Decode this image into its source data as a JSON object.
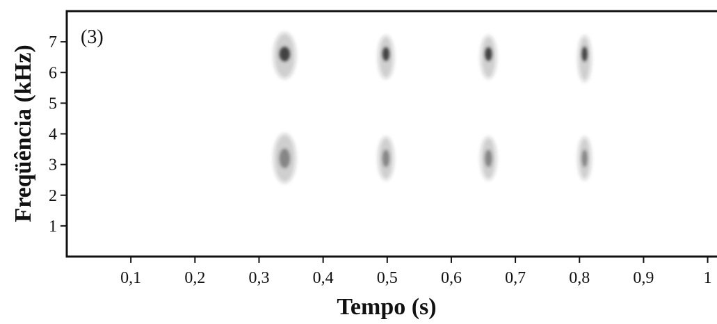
{
  "chart_data": {
    "type": "spectrogram",
    "panel_label": "(3)",
    "xlabel": "Tempo (s)",
    "ylabel": "Freqüência (kHz)",
    "xlim": [
      0,
      1.02
    ],
    "ylim": [
      0,
      8
    ],
    "x_ticks": [
      {
        "value": 0.1,
        "label": "0,1"
      },
      {
        "value": 0.2,
        "label": "0,2"
      },
      {
        "value": 0.3,
        "label": "0,3"
      },
      {
        "value": 0.4,
        "label": "0,4"
      },
      {
        "value": 0.5,
        "label": "0,5"
      },
      {
        "value": 0.6,
        "label": "0,6"
      },
      {
        "value": 0.7,
        "label": "0,7"
      },
      {
        "value": 0.8,
        "label": "0,8"
      },
      {
        "value": 0.9,
        "label": "0,9"
      },
      {
        "value": 1.0,
        "label": "1"
      }
    ],
    "y_ticks": [
      {
        "value": 1,
        "label": "1"
      },
      {
        "value": 2,
        "label": "2"
      },
      {
        "value": 3,
        "label": "3"
      },
      {
        "value": 4,
        "label": "4"
      },
      {
        "value": 5,
        "label": "5"
      },
      {
        "value": 6,
        "label": "6"
      },
      {
        "value": 7,
        "label": "7"
      }
    ],
    "notes": [
      {
        "t_start": 0.325,
        "t_end": 0.355,
        "bands": [
          {
            "f_low": 5.8,
            "f_high": 7.3,
            "peak": 6.6
          },
          {
            "f_low": 2.4,
            "f_high": 4.0,
            "peak": 3.2
          }
        ]
      },
      {
        "t_start": 0.488,
        "t_end": 0.508,
        "bands": [
          {
            "f_low": 5.8,
            "f_high": 7.2,
            "peak": 6.6
          },
          {
            "f_low": 2.5,
            "f_high": 3.9,
            "peak": 3.2
          }
        ]
      },
      {
        "t_start": 0.648,
        "t_end": 0.668,
        "bands": [
          {
            "f_low": 5.8,
            "f_high": 7.2,
            "peak": 6.6
          },
          {
            "f_low": 2.5,
            "f_high": 3.9,
            "peak": 3.2
          }
        ]
      },
      {
        "t_start": 0.8,
        "t_end": 0.816,
        "bands": [
          {
            "f_low": 5.7,
            "f_high": 7.2,
            "peak": 6.6
          },
          {
            "f_low": 2.5,
            "f_high": 3.9,
            "peak": 3.2
          }
        ]
      }
    ],
    "ink_color": "#2a2a2a",
    "grid": false,
    "legend": "none"
  }
}
